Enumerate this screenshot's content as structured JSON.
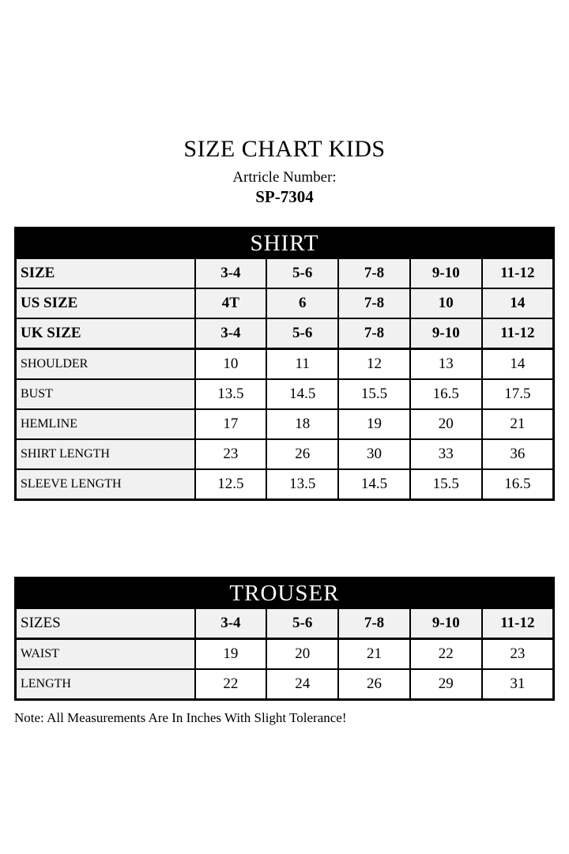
{
  "page": {
    "title": "SIZE CHART KIDS",
    "article_label": "Artricle Number:",
    "article_number": "SP-7304",
    "note": "Note: All Measurements Are In Inches With Slight Tolerance!"
  },
  "colors": {
    "header_bg": "#000000",
    "header_text": "#ffffff",
    "label_cell_bg": "#f1f1f1",
    "border": "#000000"
  },
  "shirt_table": {
    "header": "SHIRT",
    "size_rows": [
      {
        "label": "SIZE",
        "values": [
          "3-4",
          "5-6",
          "7-8",
          "9-10",
          "11-12"
        ]
      },
      {
        "label": "US SIZE",
        "values": [
          "4T",
          "6",
          "7-8",
          "10",
          "14"
        ]
      },
      {
        "label": "UK SIZE",
        "values": [
          "3-4",
          "5-6",
          "7-8",
          "9-10",
          "11-12"
        ]
      }
    ],
    "measure_rows": [
      {
        "label": "SHOULDER",
        "values": [
          "10",
          "11",
          "12",
          "13",
          "14"
        ]
      },
      {
        "label": "BUST",
        "values": [
          "13.5",
          "14.5",
          "15.5",
          "16.5",
          "17.5"
        ]
      },
      {
        "label": "HEMLINE",
        "values": [
          "17",
          "18",
          "19",
          "20",
          "21"
        ]
      },
      {
        "label": "SHIRT LENGTH",
        "values": [
          "23",
          "26",
          "30",
          "33",
          "36"
        ]
      },
      {
        "label": "SLEEVE LENGTH",
        "values": [
          "12.5",
          "13.5",
          "14.5",
          "15.5",
          "16.5"
        ]
      }
    ]
  },
  "trouser_table": {
    "header": "TROUSER",
    "size_rows": [
      {
        "label": "SIZES",
        "values": [
          "3-4",
          "5-6",
          "7-8",
          "9-10",
          "11-12"
        ]
      }
    ],
    "measure_rows": [
      {
        "label": "WAIST",
        "values": [
          "19",
          "20",
          "21",
          "22",
          "23"
        ]
      },
      {
        "label": "LENGTH",
        "values": [
          "22",
          "24",
          "26",
          "29",
          "31"
        ]
      }
    ]
  }
}
